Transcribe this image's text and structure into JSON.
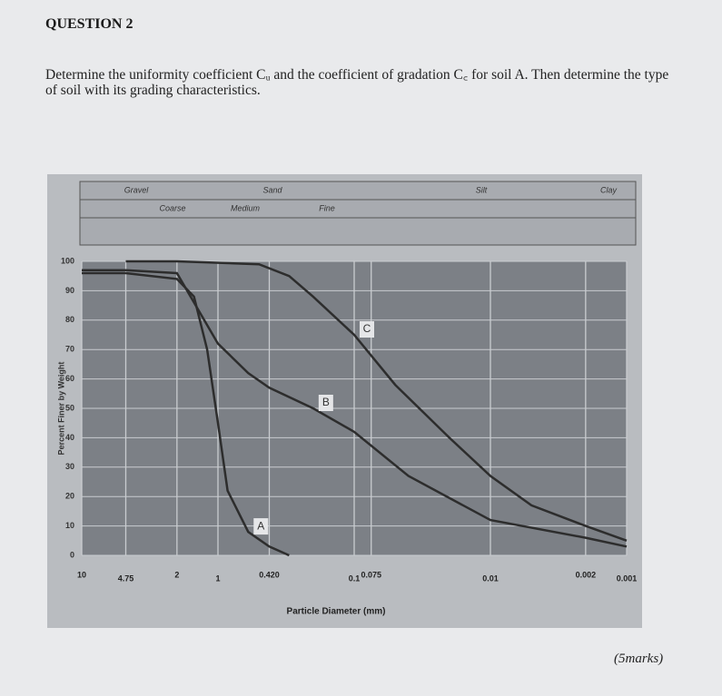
{
  "header": {
    "title": "QUESTION 2"
  },
  "question": {
    "text": "Determine the uniformity coefficient Cᵤ and the coefficient of gradation C꜀ for soil A. Then determine the type of soil with its grading characteristics.",
    "marks": "(5marks)"
  },
  "chart_data": {
    "type": "line",
    "xlabel": "Particle Diameter (mm)",
    "ylabel": "Percent Finer by Weight",
    "classes": {
      "main": [
        "Gravel",
        "Sand",
        "Silt",
        "Clay"
      ],
      "sand": [
        "Coarse",
        "Medium",
        "Fine"
      ]
    },
    "xscale": "log",
    "xlim": [
      10,
      0.001
    ],
    "xticks": [
      10,
      4.75,
      2,
      1,
      {
        "value": 0.42,
        "label": "0.420"
      },
      0.1,
      0.075,
      0.01,
      0.002,
      0.001
    ],
    "ylim": [
      0,
      100
    ],
    "yticks": [
      0,
      10,
      20,
      30,
      40,
      50,
      60,
      70,
      80,
      90,
      100
    ],
    "grid": true,
    "series": [
      {
        "name": "A",
        "color": "#2d2d2d",
        "x": [
          10,
          4.75,
          2,
          1.5,
          1.2,
          1,
          0.85,
          0.6,
          0.42,
          0.3
        ],
        "values": [
          96,
          96,
          94,
          88,
          70,
          45,
          22,
          8,
          3,
          0
        ]
      },
      {
        "name": "B",
        "color": "#2d2d2d",
        "x": [
          10,
          4.75,
          2,
          1,
          0.6,
          0.42,
          0.2,
          0.1,
          0.04,
          0.01,
          0.002,
          0.001
        ],
        "values": [
          97,
          97,
          96,
          72,
          62,
          57,
          50,
          42,
          27,
          12,
          6,
          3
        ]
      },
      {
        "name": "C",
        "color": "#2d2d2d",
        "x": [
          4.75,
          2,
          0.5,
          0.3,
          0.2,
          0.1,
          0.05,
          0.02,
          0.01,
          0.005,
          0.002,
          0.001
        ],
        "values": [
          100,
          100,
          99,
          95,
          88,
          75,
          58,
          40,
          27,
          17,
          10,
          5
        ]
      }
    ]
  }
}
